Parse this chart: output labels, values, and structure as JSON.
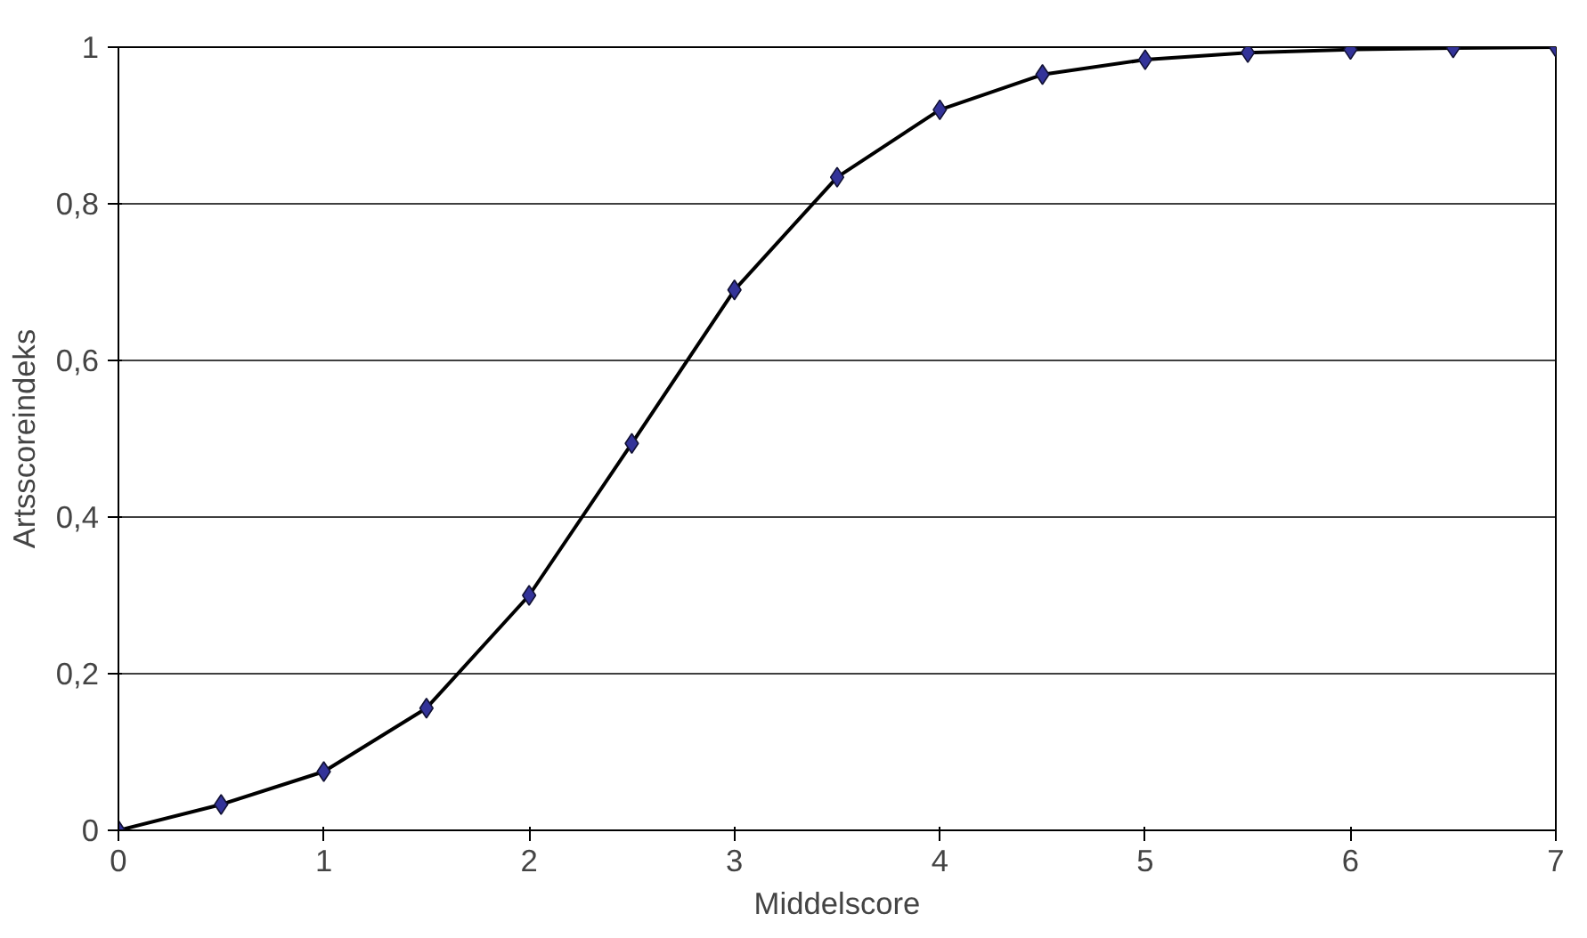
{
  "chart_data": {
    "type": "line",
    "xlabel": "Middelscore",
    "ylabel": "Artsscoreindeks",
    "x": [
      0,
      0.5,
      1,
      1.5,
      2,
      2.5,
      3,
      3.5,
      4,
      4.5,
      5,
      5.5,
      6,
      6.5,
      7
    ],
    "series": [
      {
        "color": "#000000",
        "colors": [
          "#333399",
          "#333399",
          "#333399",
          "#333399",
          "#333399",
          "#333399",
          "#333399",
          "#333399",
          "#333399",
          "#333399",
          "#333399",
          "#333399",
          "#333399",
          "#333399",
          "#333399"
        ],
        "values": [
          0,
          0.033,
          0.075,
          0.156,
          0.3,
          0.494,
          0.69,
          0.834,
          0.92,
          0.965,
          0.984,
          0.993,
          0.997,
          0.999,
          1.0
        ]
      }
    ],
    "xlim": [
      0,
      7
    ],
    "ylim": [
      0,
      1
    ],
    "xticks": [
      0,
      1,
      2,
      3,
      4,
      5,
      6,
      7
    ],
    "yticks": [
      0,
      {
        "value": 0.2,
        "label": "0,2"
      },
      {
        "value": 0.4,
        "label": "0,4"
      },
      {
        "value": 0.6,
        "label": "0,6"
      },
      {
        "value": 0.8,
        "label": "0,8"
      },
      1
    ],
    "grid": "y",
    "marker": "diamond",
    "line_style": "solid"
  }
}
